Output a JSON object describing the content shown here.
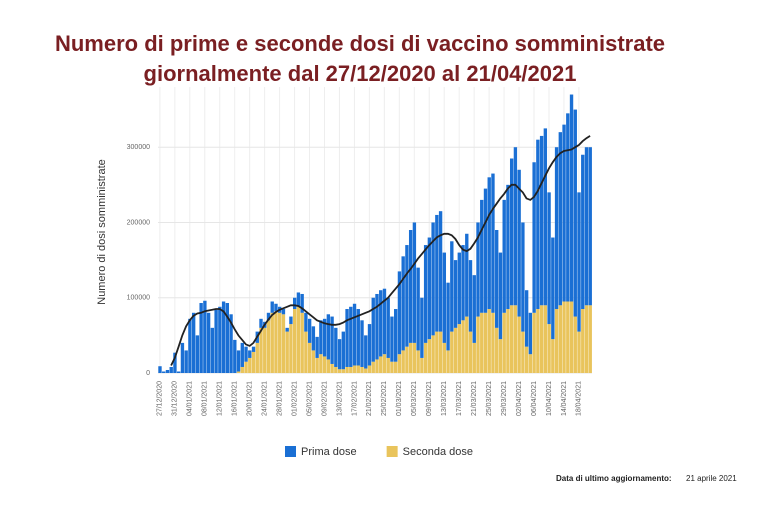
{
  "chart_data": {
    "type": "bar",
    "stacked": true,
    "title_lines": [
      "Numero di prime e seconde dosi di vaccino somministrate",
      "giornalmente dal 27/12/2020 al 21/04/2021"
    ],
    "y_label": "Numero di dosi somministrate",
    "ylim": [
      0,
      380000
    ],
    "yticks": [
      0,
      100000,
      200000,
      300000
    ],
    "grid": true,
    "categories": [
      "27/12/2020",
      null,
      null,
      null,
      "31/12/2020",
      null,
      null,
      null,
      "04/01/2021",
      null,
      null,
      null,
      "08/01/2021",
      null,
      null,
      null,
      "12/01/2021",
      null,
      null,
      null,
      "16/01/2021",
      null,
      null,
      null,
      "20/01/2021",
      null,
      null,
      null,
      "24/01/2021",
      null,
      null,
      null,
      "28/01/2021",
      null,
      null,
      null,
      "01/02/2021",
      null,
      null,
      null,
      "05/02/2021",
      null,
      null,
      null,
      "09/02/2021",
      null,
      null,
      null,
      "13/02/2021",
      null,
      null,
      null,
      "17/02/2021",
      null,
      null,
      null,
      "21/02/2021",
      null,
      null,
      null,
      "25/02/2021",
      null,
      null,
      null,
      "01/03/2021",
      null,
      null,
      null,
      "05/03/2021",
      null,
      null,
      null,
      "09/03/2021",
      null,
      null,
      null,
      "13/03/2021",
      null,
      null,
      null,
      "17/03/2021",
      null,
      null,
      null,
      "21/03/2021",
      null,
      null,
      null,
      "25/03/2021",
      null,
      null,
      null,
      "29/03/2021",
      null,
      null,
      null,
      "02/04/2021",
      null,
      null,
      null,
      "06/04/2021",
      null,
      null,
      null,
      "10/04/2021",
      null,
      null,
      null,
      "14/04/2021",
      null,
      null,
      null,
      "18/04/2021",
      null,
      null,
      null
    ],
    "series": [
      {
        "name": "Prima dose",
        "color": "#1a6fd4",
        "values": [
          9000,
          2000,
          4000,
          8000,
          27000,
          2000,
          40000,
          30000,
          72000,
          80000,
          50000,
          93000,
          96000,
          80000,
          60000,
          84000,
          88000,
          95000,
          93000,
          78000,
          44000,
          28000,
          32000,
          20000,
          10000,
          7000,
          15000,
          12000,
          8000,
          10000,
          15000,
          10000,
          8000,
          7000,
          5000,
          10000,
          15000,
          19000,
          25000,
          25000,
          32000,
          32000,
          28000,
          45000,
          50000,
          60000,
          63000,
          52000,
          40000,
          50000,
          77000,
          80000,
          82000,
          75000,
          62000,
          44000,
          55000,
          85000,
          87000,
          88000,
          87000,
          80000,
          60000,
          70000,
          110000,
          125000,
          135000,
          150000,
          160000,
          110000,
          80000,
          130000,
          135000,
          150000,
          155000,
          160000,
          120000,
          90000,
          120000,
          90000,
          95000,
          100000,
          110000,
          95000,
          90000,
          125000,
          150000,
          165000,
          175000,
          185000,
          130000,
          115000,
          150000,
          165000,
          195000,
          210000,
          195000,
          145000,
          75000,
          55000,
          200000,
          225000,
          225000,
          235000,
          175000,
          135000,
          215000,
          230000,
          235000,
          250000,
          275000,
          275000,
          185000,
          205000,
          210000,
          210000
        ]
      },
      {
        "name": "Seconda dose",
        "color": "#e9c45c",
        "values": [
          0,
          0,
          0,
          0,
          0,
          0,
          0,
          0,
          0,
          0,
          0,
          0,
          0,
          0,
          0,
          0,
          0,
          0,
          0,
          0,
          0,
          2000,
          8000,
          15000,
          20000,
          28000,
          40000,
          60000,
          60000,
          70000,
          80000,
          82000,
          80000,
          78000,
          55000,
          65000,
          85000,
          88000,
          80000,
          55000,
          40000,
          30000,
          20000,
          25000,
          22000,
          18000,
          12000,
          8000,
          5000,
          5000,
          8000,
          8000,
          10000,
          10000,
          8000,
          6000,
          10000,
          15000,
          18000,
          22000,
          25000,
          20000,
          15000,
          15000,
          25000,
          30000,
          35000,
          40000,
          40000,
          30000,
          20000,
          40000,
          45000,
          50000,
          55000,
          55000,
          40000,
          30000,
          55000,
          60000,
          65000,
          70000,
          75000,
          55000,
          40000,
          75000,
          80000,
          80000,
          85000,
          80000,
          60000,
          45000,
          80000,
          85000,
          90000,
          90000,
          75000,
          55000,
          35000,
          25000,
          80000,
          85000,
          90000,
          90000,
          65000,
          45000,
          85000,
          90000,
          95000,
          95000,
          95000,
          75000,
          55000,
          85000,
          90000,
          90000
        ]
      }
    ],
    "trend": {
      "color": "#222222",
      "values": [
        null,
        null,
        null,
        10000,
        20000,
        35000,
        50000,
        62000,
        70000,
        76000,
        79000,
        80000,
        82000,
        83000,
        84000,
        85000,
        85000,
        82000,
        75000,
        67000,
        58000,
        50000,
        44000,
        38000,
        36000,
        40000,
        48000,
        56000,
        64000,
        71000,
        77000,
        81000,
        84000,
        86000,
        88000,
        90000,
        90000,
        89000,
        86000,
        82000,
        78000,
        74000,
        70000,
        68000,
        66000,
        65000,
        64000,
        64000,
        65000,
        67000,
        70000,
        72000,
        74000,
        76000,
        78000,
        80000,
        82000,
        85000,
        88000,
        92000,
        96000,
        100000,
        106000,
        112000,
        118000,
        125000,
        132000,
        138000,
        145000,
        152000,
        158000,
        164000,
        170000,
        175000,
        180000,
        183000,
        185000,
        185000,
        183000,
        178000,
        170000,
        164000,
        162000,
        165000,
        172000,
        180000,
        190000,
        200000,
        210000,
        218000,
        225000,
        232000,
        238000,
        245000,
        250000,
        250000,
        245000,
        240000,
        232000,
        230000,
        234000,
        242000,
        252000,
        262000,
        272000,
        280000,
        287000,
        292000,
        295000,
        296000,
        297000,
        300000,
        303000,
        308000,
        312000,
        315000
      ]
    },
    "footer": {
      "label": "Data di ultimo aggiornamento:",
      "value": "21 aprile 2021"
    }
  }
}
